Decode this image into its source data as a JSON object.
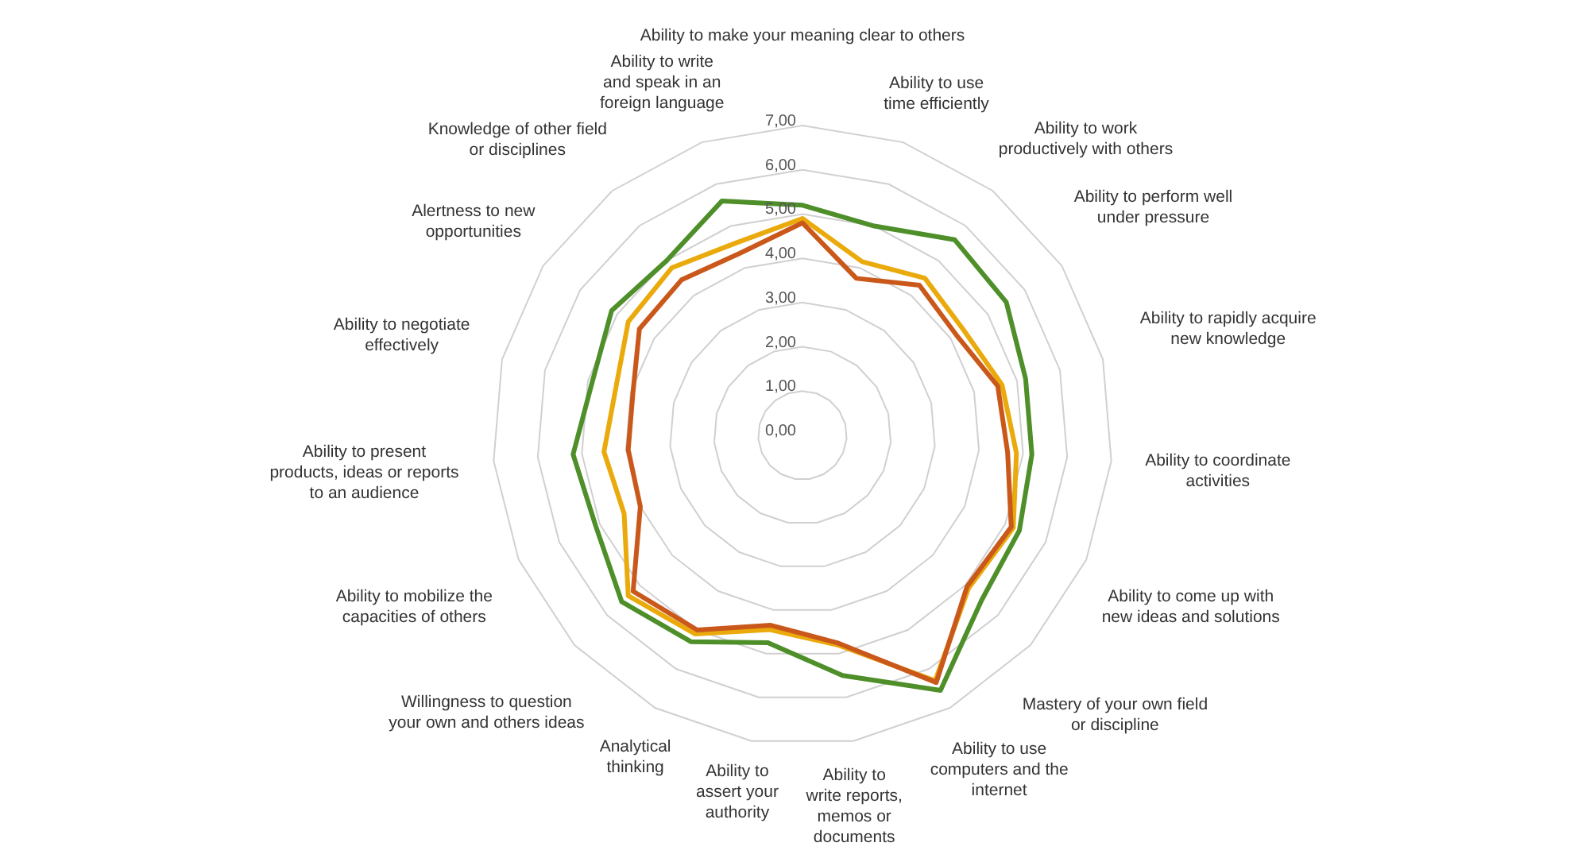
{
  "chart_data": {
    "type": "radar",
    "categories": [
      "Ability to make your meaning clear to others",
      "Ability to use time efficiently",
      "Ability to work productively with others",
      "Ability to perform well under pressure",
      "Ability to rapidly acquire new knowledge",
      "Ability to coordinate activities",
      "Ability to come up with new ideas and solutions",
      "Mastery of your own field or discipline",
      "Ability to use computers and the internet",
      "Ability to write reports, memos or documents",
      "Ability to assert your authority",
      "Analytical thinking",
      "Willingness to question your own and others ideas",
      "Ability to mobilize the capacities of others",
      "Ability to present products, ideas or reports to an audience",
      "Ability to negotiate effectively",
      "Alertness to new opportunities",
      "Knowledge of other field or disciplines",
      "Ability to write and speak in an foreign language"
    ],
    "series": [
      {
        "color": "#4e8f2a",
        "values": [
          5.2,
          5.0,
          5.6,
          5.5,
          5.2,
          5.2,
          5.35,
          5.5,
          6.55,
          5.5,
          4.75,
          5.3,
          5.55,
          5.1,
          5.2,
          4.9,
          5.15,
          5.0,
          5.6
        ]
      },
      {
        "color": "#eaaa0c",
        "values": [
          4.9,
          4.15,
          4.5,
          4.35,
          4.65,
          4.85,
          5.2,
          5.1,
          6.3,
          4.8,
          4.45,
          5.1,
          5.35,
          4.4,
          4.5,
          4.35,
          4.7,
          4.8,
          4.6
        ]
      },
      {
        "color": "#c9581a",
        "values": [
          4.8,
          3.75,
          4.3,
          4.15,
          4.55,
          4.65,
          5.15,
          5.05,
          6.35,
          4.75,
          4.35,
          5.0,
          5.2,
          4.0,
          3.95,
          3.95,
          4.4,
          4.45,
          4.35
        ]
      }
    ],
    "ylim": [
      0,
      7
    ],
    "yticks": [
      {
        "value": 0,
        "label": "0,00"
      },
      {
        "value": 1,
        "label": "1,00"
      },
      {
        "value": 2,
        "label": "2,00"
      },
      {
        "value": 3,
        "label": "3,00"
      },
      {
        "value": 4,
        "label": "4,00"
      },
      {
        "value": 5,
        "label": "5,00"
      },
      {
        "value": 6,
        "label": "6,00"
      },
      {
        "value": 7,
        "label": "7,00"
      }
    ],
    "grid": true,
    "legend": false,
    "marker": "none",
    "line_style": "solid"
  }
}
